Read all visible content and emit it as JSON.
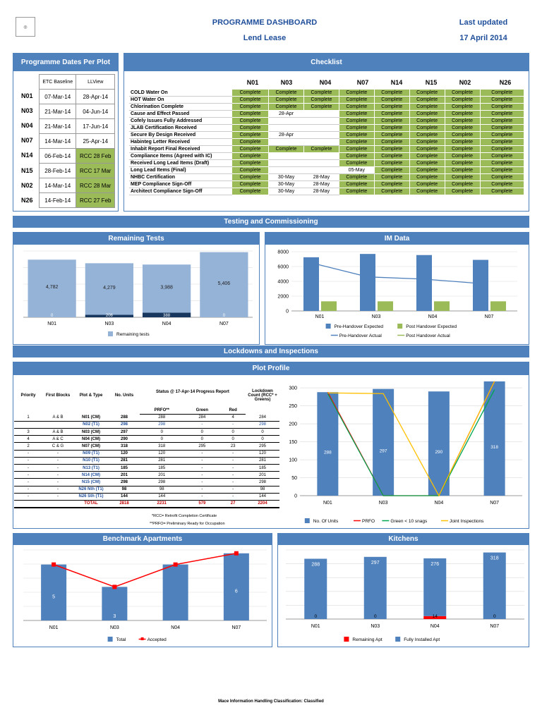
{
  "header": {
    "title": "PROGRAMME DASHBOARD",
    "subtitle": "Lend Lease",
    "updated_label": "Last updated",
    "updated_value": "17 April 2014"
  },
  "sections": {
    "dates": "Programme Dates Per Plot",
    "checklist": "Checklist",
    "testing": "Testing and Commissioning",
    "remaining": "Remaining Tests",
    "im": "IM Data",
    "lockdowns": "Lockdowns and Inspections",
    "plot_profile": "Plot Profile",
    "benchmark": "Benchmark Apartments",
    "kitchens": "Kitchens"
  },
  "dates": {
    "col1": "ETC Baseline",
    "col2": "LLView",
    "rows": [
      {
        "plot": "N01",
        "etc": "07-Mar-14",
        "ll": "28-Apr-14",
        "green": false
      },
      {
        "plot": "N03",
        "etc": "21-Mar-14",
        "ll": "04-Jun-14",
        "green": false
      },
      {
        "plot": "N04",
        "etc": "21-Mar-14",
        "ll": "17-Jun-14",
        "green": false
      },
      {
        "plot": "N07",
        "etc": "14-Mar-14",
        "ll": "25-Apr-14",
        "green": false
      },
      {
        "plot": "N14",
        "etc": "06-Feb-14",
        "ll": "RCC 28 Feb",
        "green": true
      },
      {
        "plot": "N15",
        "etc": "28-Feb-14",
        "ll": "RCC 17 Mar",
        "green": true
      },
      {
        "plot": "N02",
        "etc": "14-Mar-14",
        "ll": "RCC 28 Mar",
        "green": true
      },
      {
        "plot": "N26",
        "etc": "14-Feb-14",
        "ll": "RCC 27 Feb",
        "green": true
      }
    ]
  },
  "checklist": {
    "columns": [
      "N01",
      "N03",
      "N04",
      "N07",
      "N14",
      "N15",
      "N02",
      "N26"
    ],
    "rows": [
      {
        "label": "COLD Water On",
        "v": [
          "Complete",
          "Complete",
          "Complete",
          "Complete",
          "Complete",
          "Complete",
          "Complete",
          "Complete"
        ]
      },
      {
        "label": "HOT Water On",
        "v": [
          "Complete",
          "Complete",
          "Complete",
          "Complete",
          "Complete",
          "Complete",
          "Complete",
          "Complete"
        ]
      },
      {
        "label": "Chlorination Complete",
        "v": [
          "Complete",
          "Complete",
          "Complete",
          "Complete",
          "Complete",
          "Complete",
          "Complete",
          "Complete"
        ]
      },
      {
        "label": "Cause and Effect Passed",
        "v": [
          "Complete",
          "28-Apr",
          "",
          "Complete",
          "Complete",
          "Complete",
          "Complete",
          "Complete"
        ]
      },
      {
        "label": "Cofely Issues Fully Addressed",
        "v": [
          "Complete",
          "",
          "",
          "Complete",
          "Complete",
          "Complete",
          "Complete",
          "Complete"
        ]
      },
      {
        "label": "JLAB Certification Received",
        "v": [
          "Complete",
          "",
          "",
          "Complete",
          "Complete",
          "Complete",
          "Complete",
          "Complete"
        ]
      },
      {
        "label": "Secure By Design Received",
        "v": [
          "Complete",
          "28-Apr",
          "",
          "Complete",
          "Complete",
          "Complete",
          "Complete",
          "Complete"
        ]
      },
      {
        "label": "Habinteg Letter Received",
        "v": [
          "Complete",
          "",
          "",
          "Complete",
          "Complete",
          "Complete",
          "Complete",
          "Complete"
        ]
      },
      {
        "label": "Inhabit Report Final Received",
        "v": [
          "Complete",
          "Complete",
          "Complete",
          "Complete",
          "Complete",
          "Complete",
          "Complete",
          "Complete"
        ]
      },
      {
        "label": "Compliance Items (Agreed with IC)",
        "v": [
          "Complete",
          "",
          "",
          "Complete",
          "Complete",
          "Complete",
          "Complete",
          "Complete"
        ]
      },
      {
        "label": "Received Long Lead Items (Draft)",
        "v": [
          "Complete",
          "",
          "",
          "Complete",
          "Complete",
          "Complete",
          "Complete",
          "Complete"
        ]
      },
      {
        "label": "Long Lead Items (Final)",
        "v": [
          "Complete",
          "",
          "",
          "05-May",
          "Complete",
          "Complete",
          "Complete",
          "Complete"
        ]
      },
      {
        "label": "NHBC Certification",
        "v": [
          "Complete",
          "30-May",
          "28-May",
          "Complete",
          "Complete",
          "Complete",
          "Complete",
          "Complete"
        ]
      },
      {
        "label": "MEP Compliance Sign-Off",
        "v": [
          "Complete",
          "30-May",
          "28-May",
          "Complete",
          "Complete",
          "Complete",
          "Complete",
          "Complete"
        ]
      },
      {
        "label": "Architect Compliance Sign-Off",
        "v": [
          "Complete",
          "30-May",
          "28-May",
          "Complete",
          "Complete",
          "Complete",
          "Complete",
          "Complete"
        ]
      }
    ]
  },
  "plot_profile": {
    "headers": [
      "Priority",
      "First Blocks",
      "Plot & Type",
      "No. Units",
      "Status @ 17-Apr-14 Progress Report",
      "Lockdown Count (RCC* + Greens)"
    ],
    "sub": [
      "PRFO**",
      "Green",
      "Red"
    ],
    "rows": [
      [
        "1",
        "A & B",
        "N01 (CM)",
        "288",
        "288",
        "284",
        "4",
        "284"
      ],
      [
        "",
        "",
        "N02 (T1)",
        "298",
        "298",
        "-",
        "-",
        "298"
      ],
      [
        "3",
        "A & B",
        "N03 (CM)",
        "297",
        "0",
        "0",
        "0",
        "0"
      ],
      [
        "4",
        "A & C",
        "N04 (CM)",
        "290",
        "0",
        "0",
        "0",
        "0"
      ],
      [
        "2",
        "C & G",
        "N07 (CM)",
        "318",
        "318",
        "295",
        "23",
        "295"
      ],
      [
        "-",
        "-",
        "N09 (T1)",
        "120",
        "120",
        "-",
        "-",
        "120"
      ],
      [
        "-",
        "-",
        "N10 (T1)",
        "281",
        "281",
        "-",
        "-",
        "281"
      ],
      [
        "-",
        "-",
        "N13 (T1)",
        "185",
        "185",
        "-",
        "-",
        "185"
      ],
      [
        "-",
        "-",
        "N14 (CM)",
        "201",
        "201",
        "-",
        "-",
        "201"
      ],
      [
        "-",
        "-",
        "N15 (CM)",
        "298",
        "298",
        "-",
        "-",
        "298"
      ],
      [
        "-",
        "-",
        "N26 Nth (T1)",
        "98",
        "98",
        "-",
        "-",
        "98"
      ],
      [
        "-",
        "-",
        "N26 Sth (T1)",
        "144",
        "144",
        "-",
        "-",
        "144"
      ]
    ],
    "total": [
      "",
      "",
      "TOTAL",
      "2818",
      "2231",
      "579",
      "27",
      "2204"
    ],
    "notes": [
      "*RCC= Retrofit Completion Certificate",
      "**PRFO= Preliminary Ready for Occupation"
    ]
  },
  "footer": "Mace Information Handling Classification: Classified",
  "chart_data": [
    {
      "id": "remaining",
      "type": "bar",
      "categories": [
        "N01",
        "N03",
        "N04",
        "N07"
      ],
      "series": [
        {
          "name": "Remaining tests",
          "values": [
            4782,
            4279,
            3988,
            5406
          ],
          "color": "#95b3d7"
        },
        {
          "values": [
            0,
            206,
            388,
            0
          ],
          "color": "#17375e"
        }
      ],
      "labels": [
        "4,782",
        "4,279",
        "3,988",
        "5,406"
      ],
      "small_labels": [
        "0",
        "206",
        "388",
        "0"
      ],
      "legend": [
        "Remaining tests"
      ]
    },
    {
      "id": "im",
      "type": "bar",
      "categories": [
        "N01",
        "N03",
        "N04",
        "N07"
      ],
      "ylim": [
        0,
        8000
      ],
      "yticks": [
        0,
        2000,
        4000,
        6000,
        8000
      ],
      "series": [
        {
          "name": "Pre-Handover Expected",
          "values": [
            7250,
            7700,
            7550,
            6900
          ],
          "color": "#4f81bd"
        },
        {
          "name": "Post Handover Expected",
          "values": [
            1300,
            1300,
            1300,
            1300
          ],
          "color": "#9bbb59"
        },
        {
          "name": "Pre-Handover Actual",
          "values": [
            6500,
            4600,
            4300,
            3700
          ],
          "color": "#4f81bd"
        },
        {
          "name": "Post Handover Actual",
          "values": [
            null,
            null,
            null,
            null
          ],
          "color": "#9bbb59"
        }
      ]
    },
    {
      "id": "plot",
      "type": "bar",
      "categories": [
        "N01",
        "N03",
        "N04",
        "N07"
      ],
      "ylim": [
        0,
        300
      ],
      "yticks": [
        0,
        50,
        100,
        150,
        200,
        250,
        300
      ],
      "series": [
        {
          "name": "No. Of Units",
          "values": [
            288,
            297,
            290,
            318
          ],
          "color": "#4f81bd"
        },
        {
          "name": "PRFO",
          "values": [
            288,
            0,
            0,
            318
          ],
          "color": "#ff0000"
        },
        {
          "name": "Green < 10 snags",
          "values": [
            284,
            0,
            0,
            295
          ],
          "color": "#00a651"
        },
        {
          "name": "Joint Inspections",
          "values": [
            286,
            284,
            0,
            318
          ],
          "color": "#ffc000"
        }
      ]
    },
    {
      "id": "benchmark",
      "type": "bar",
      "categories": [
        "N01",
        "N03",
        "N04",
        "N07"
      ],
      "series": [
        {
          "name": "Total",
          "values": [
            5,
            3,
            5,
            6
          ],
          "color": "#4f81bd"
        },
        {
          "name": "Accepted",
          "values": [
            5,
            3,
            5,
            6
          ],
          "color": "#ff0000"
        }
      ],
      "labels": [
        "5",
        "3",
        "",
        "6"
      ]
    },
    {
      "id": "kitchens",
      "type": "bar",
      "categories": [
        "N01",
        "N03",
        "N04",
        "N07"
      ],
      "series": [
        {
          "name": "Remaining Apt",
          "values": [
            0,
            0,
            14,
            0
          ],
          "color": "#ff0000"
        },
        {
          "name": "Fully Installed Apt",
          "values": [
            288,
            297,
            276,
            318
          ],
          "color": "#4f81bd"
        }
      ],
      "labels": [
        "288",
        "297",
        "276",
        "318"
      ],
      "small_labels": [
        "0",
        "0",
        "14",
        "0"
      ]
    }
  ]
}
